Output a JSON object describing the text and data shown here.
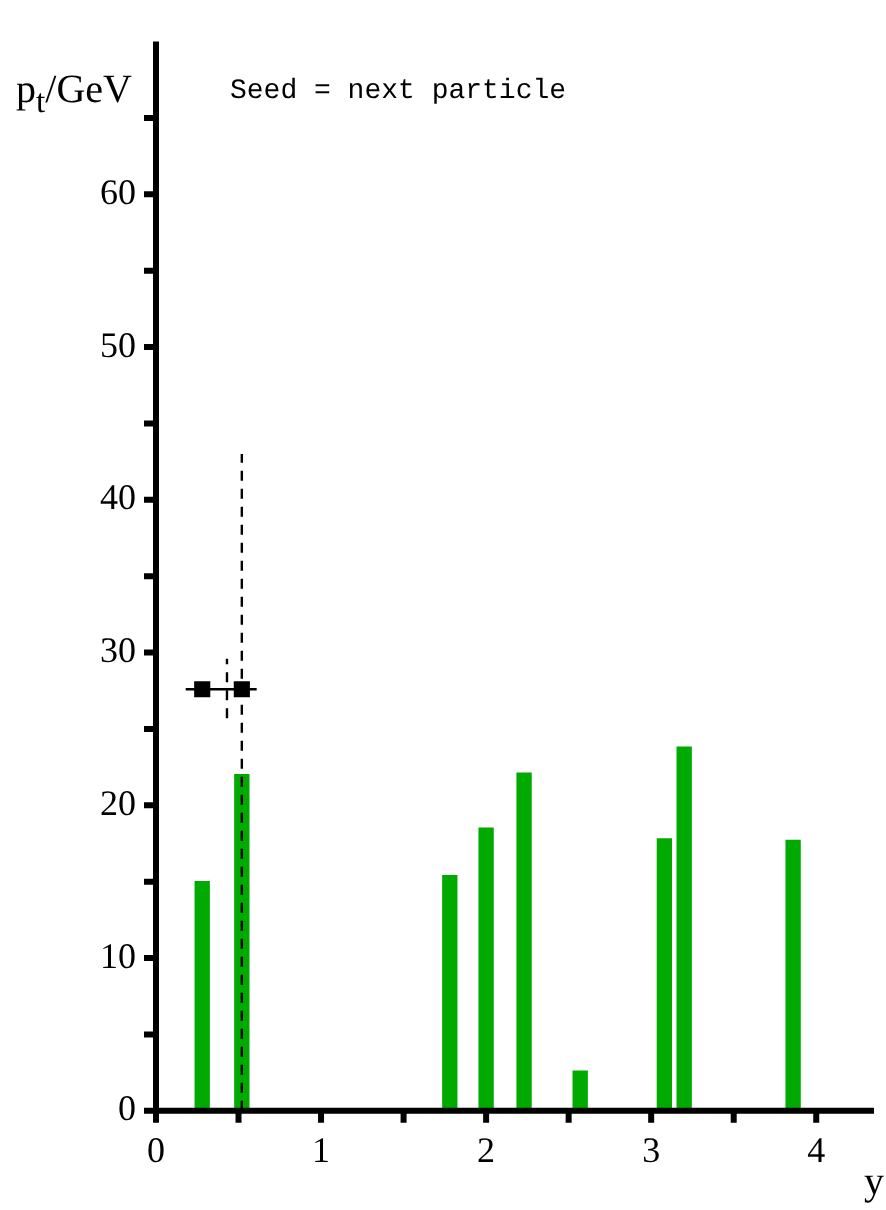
{
  "chart_data": {
    "type": "bar",
    "title": "Seed = next particle",
    "xlabel": "y",
    "ylabel": "p$_{t}$/GeV",
    "xlim": [
      0,
      4.35
    ],
    "xticks": [
      0,
      {
        "value": 0.5,
        "label": null
      },
      1,
      {
        "value": 1.5,
        "label": null
      },
      2,
      {
        "value": 2.5,
        "label": null
      },
      3,
      {
        "value": 3.5,
        "label": null
      },
      4
    ],
    "ylim": [
      0,
      70
    ],
    "yticks": [
      0,
      {
        "value": 5,
        "label": null
      },
      10,
      {
        "value": 15,
        "label": null
      },
      20,
      {
        "value": 25,
        "label": null
      },
      30,
      {
        "value": 35,
        "label": null
      },
      40,
      {
        "value": 45,
        "label": null
      },
      50,
      {
        "value": 55,
        "label": null
      },
      60,
      {
        "value": 65,
        "label": null
      }
    ],
    "grid": false,
    "legend": false,
    "series": [
      {
        "color": "#00aa00",
        "x": [
          0.28,
          0.52,
          1.78,
          2.0,
          2.23,
          2.57,
          3.08,
          3.2,
          3.86
        ],
        "values": [
          15,
          22,
          15.4,
          18.5,
          22.1,
          2.6,
          17.8,
          23.8,
          17.7
        ]
      },
      {
        "type": "line",
        "color": "#000000",
        "line_style": "dashed",
        "marker": "none",
        "x": [
          0.52,
          0.52
        ],
        "values": [
          0,
          43
        ]
      },
      {
        "type": "line",
        "color": "#000000",
        "line_style": "solid",
        "marker": "none",
        "x": [
          0.18,
          0.61
        ],
        "values": [
          27.6,
          27.6
        ]
      },
      {
        "type": "line",
        "color": "#000000",
        "line_style": "dashed",
        "marker": "none",
        "x": [
          0.43,
          0.43
        ],
        "values": [
          25.7,
          29.6
        ]
      },
      {
        "type": "scatter",
        "color": "#000000",
        "marker": "square",
        "x": [
          0.28,
          0.52
        ],
        "values": [
          27.6,
          27.6
        ]
      }
    ]
  }
}
